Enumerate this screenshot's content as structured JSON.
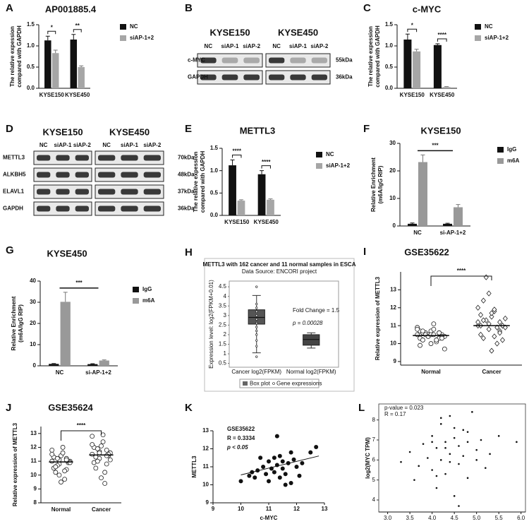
{
  "blots": [
    {
      "panel": "B",
      "groups": [
        {
          "name": "KYSE150",
          "lanes": [
            "NC",
            "siAP-1",
            "siAP-2"
          ]
        },
        {
          "name": "KYSE450",
          "lanes": [
            "NC",
            "siAP-1",
            "siAP-2"
          ]
        }
      ],
      "rows": [
        {
          "name": "c-MYC",
          "size": "55kDa"
        },
        {
          "name": "GAPDH",
          "size": "36kDa"
        }
      ]
    },
    {
      "panel": "D",
      "groups": [
        {
          "name": "KYSE150",
          "lanes": [
            "NC",
            "siAP-1",
            "siAP-2"
          ]
        },
        {
          "name": "KYSE450",
          "lanes": [
            "NC",
            "siAP-1",
            "siAP-2"
          ]
        }
      ],
      "rows": [
        {
          "name": "METTL3",
          "size": "70kDa"
        },
        {
          "name": "ALKBH5",
          "size": "48kDa"
        },
        {
          "name": "ELAVL1",
          "size": "37kDa"
        },
        {
          "name": "GAPDH",
          "size": "36kDa"
        }
      ]
    }
  ],
  "chart_data": [
    {
      "type": "bar",
      "panel": "A",
      "title": "AP001885.4",
      "ylabel": [
        "The relative expession",
        "compared with GAPDH"
      ],
      "categories": [
        "KYSE150",
        "KYSE450"
      ],
      "series": [
        {
          "name": "NC",
          "color": "#111111",
          "values": [
            1.13,
            1.15
          ],
          "errors": [
            0.1,
            0.12
          ]
        },
        {
          "name": "siAP-1+2",
          "color": "#a6a6a6",
          "values": [
            0.83,
            0.5
          ],
          "errors": [
            0.07,
            0.03
          ]
        }
      ],
      "ylim": [
        0,
        1.5
      ],
      "yticks": [
        {
          "value": 0,
          "label": "0.0"
        },
        0.5,
        {
          "value": 1,
          "label": "1.0"
        },
        1.5
      ],
      "annotations": [
        "*",
        "**"
      ]
    },
    {
      "type": "bar",
      "panel": "C",
      "title": "c-MYC",
      "ylabel": [
        "The relative expession",
        "compared with GAPDH"
      ],
      "categories": [
        "KYSE150",
        "KYSE450"
      ],
      "series": [
        {
          "name": "NC",
          "color": "#111111",
          "values": [
            1.15,
            1.02
          ],
          "errors": [
            0.13,
            0.03
          ]
        },
        {
          "name": "siAP-1+2",
          "color": "#a6a6a6",
          "values": [
            0.87,
            0.03
          ],
          "errors": [
            0.05,
            0.01
          ]
        }
      ],
      "ylim": [
        0,
        1.5
      ],
      "yticks": [
        {
          "value": 0,
          "label": "0.0"
        },
        0.5,
        {
          "value": 1,
          "label": "1.0"
        },
        1.5
      ],
      "annotations": [
        "*",
        "****"
      ]
    },
    {
      "type": "bar",
      "panel": "E",
      "title": "METTL3",
      "ylabel": [
        "The relative expession",
        "compared with GAPDH"
      ],
      "categories": [
        "KYSE150",
        "KYSE450"
      ],
      "series": [
        {
          "name": "NC",
          "color": "#111111",
          "values": [
            1.12,
            0.92
          ],
          "errors": [
            0.12,
            0.08
          ]
        },
        {
          "name": "siAP-1+2",
          "color": "#a6a6a6",
          "values": [
            0.33,
            0.35
          ],
          "errors": [
            0.02,
            0.02
          ]
        }
      ],
      "ylim": [
        0,
        1.5
      ],
      "yticks": [
        {
          "value": 0,
          "label": "0.0"
        },
        0.5,
        {
          "value": 1,
          "label": "1.0"
        },
        1.5
      ],
      "annotations": [
        "****",
        "****"
      ]
    },
    {
      "type": "bar",
      "panel": "F",
      "title": "KYSE150",
      "ylabel": [
        "Relative Enrichment",
        "(m6A/IgG RIP)"
      ],
      "categories": [
        "NC",
        "si-AP-1+2"
      ],
      "series": [
        {
          "name": "IgG",
          "color": "#111111",
          "values": [
            0.8,
            0.8
          ],
          "errors": [
            0.3,
            0.2
          ]
        },
        {
          "name": "m6A",
          "color": "#999999",
          "values": [
            23.2,
            6.8
          ],
          "errors": [
            2.6,
            1.0
          ]
        }
      ],
      "ylim": [
        0,
        30
      ],
      "yticks": [
        0,
        10,
        20,
        30
      ],
      "annotations": [
        "***"
      ]
    },
    {
      "type": "bar",
      "panel": "G",
      "title": "KYSE450",
      "ylabel": [
        "Relative Enrichment",
        "(m6A/IgG RIP)"
      ],
      "categories": [
        "NC",
        "si-AP-1+2"
      ],
      "series": [
        {
          "name": "IgG",
          "color": "#111111",
          "values": [
            0.9,
            0.8
          ],
          "errors": [
            0.2,
            0.2
          ]
        },
        {
          "name": "m6A",
          "color": "#999999",
          "values": [
            30.2,
            2.5
          ],
          "errors": [
            4.5,
            0.3
          ]
        }
      ],
      "ylim": [
        0,
        40
      ],
      "yticks": [
        0,
        10,
        20,
        30,
        40
      ],
      "annotations": [
        "***"
      ]
    },
    {
      "type": "box",
      "panel": "H",
      "title": "METTL3 with 162 cancer and 11 normal samples in ESCA",
      "subtitle": "Data Source: ENCORI project",
      "ylabel": "Expression level: log2(FPKM+0.01)",
      "categories": [
        "Cancer log2(FPKM)",
        "Normal log2(FPKM)"
      ],
      "boxes": [
        {
          "min": 1.05,
          "q1": 2.55,
          "median": 2.9,
          "q3": 3.3,
          "max": 4.05
        },
        {
          "min": 1.3,
          "q1": 1.45,
          "median": 1.75,
          "q3": 2.0,
          "max": 2.1
        }
      ],
      "points": [
        [
          0.85,
          1.4,
          1.7,
          2.0,
          2.2,
          2.4,
          2.6,
          2.8,
          3.0,
          3.2,
          3.4,
          3.6,
          4.5
        ],
        []
      ],
      "colors": [
        "#555555",
        "#444444"
      ],
      "annotations": [
        "Fold Change = 1.5",
        "p = 0.00028"
      ],
      "legend": [
        "Box plot",
        "Gene expressions"
      ],
      "ylim": [
        0.3,
        4.8
      ],
      "yticks": [
        0.5,
        1,
        1.5,
        2,
        2.5,
        3,
        3.5,
        4,
        4.5
      ]
    },
    {
      "type": "strip",
      "panel": "I",
      "title": "GSE35622",
      "ylabel": "Relative expression of METTL3",
      "categories": [
        "Normal",
        "Cancer"
      ],
      "markers": [
        "circle",
        "diamond"
      ],
      "values": [
        [
          10.5,
          10.4,
          10.6,
          10.3,
          10.7,
          10.5,
          10.2,
          10.8,
          10.4,
          10.6,
          10.1,
          10.9,
          10.5,
          10.3,
          10.7,
          10.0,
          10.4,
          10.6,
          11.1,
          9.7,
          10.5,
          10.2,
          10.8,
          10.4,
          10.6,
          9.9,
          10.5,
          10.3,
          10.7,
          10.5
        ],
        [
          11.0,
          10.8,
          11.2,
          10.5,
          11.5,
          11.0,
          10.3,
          11.8,
          10.9,
          11.3,
          10.0,
          12.0,
          11.1,
          10.7,
          11.6,
          9.6,
          11.0,
          12.4,
          10.4,
          11.4,
          13.7,
          10.9,
          11.2,
          12.8,
          10.6,
          11.0,
          11.7,
          10.2,
          11.3,
          11.9
        ]
      ],
      "means": [
        10.45,
        11.0
      ],
      "ylim": [
        8.8,
        14
      ],
      "yticks": [
        9,
        10,
        11,
        12,
        13
      ],
      "annotations": [
        "****"
      ]
    },
    {
      "type": "strip",
      "panel": "J",
      "title": "GSE35624",
      "ylabel": "Relative expression of METTL3",
      "categories": [
        "Normal",
        "Cancer"
      ],
      "markers": [
        "circle",
        "circle"
      ],
      "values": [
        [
          11.0,
          10.8,
          11.2,
          10.5,
          11.4,
          10.9,
          10.2,
          11.6,
          11.0,
          10.7,
          9.7,
          11.8,
          11.1,
          10.4,
          11.3,
          9.5,
          11.0,
          10.6,
          12.0,
          10.9,
          11.2,
          10.3,
          11.5,
          10.0,
          11.1
        ],
        [
          11.5,
          11.2,
          11.8,
          10.9,
          12.1,
          11.4,
          10.5,
          12.4,
          11.6,
          11.0,
          9.4,
          12.8,
          11.7,
          10.8,
          12.0,
          9.8,
          11.5,
          11.3,
          12.9,
          11.1,
          11.9,
          10.2,
          12.2,
          11.6,
          11.4
        ]
      ],
      "means": [
        10.95,
        11.45
      ],
      "ylim": [
        8,
        13.5
      ],
      "yticks": [
        8,
        9,
        10,
        11,
        12,
        13
      ],
      "annotations": [
        "****"
      ]
    },
    {
      "type": "scatter",
      "panel": "K",
      "xlabel": "c-MYC",
      "ylabel": "METTL3",
      "color": "#111111",
      "x": [
        10.0,
        10.3,
        10.5,
        10.6,
        10.8,
        10.9,
        11.0,
        11.0,
        11.1,
        11.2,
        11.2,
        11.3,
        11.4,
        11.4,
        11.5,
        11.5,
        11.6,
        11.7,
        11.8,
        11.9,
        12.0,
        12.1,
        12.2,
        12.5,
        12.7,
        10.4,
        10.7,
        11.3,
        11.8,
        11.6
      ],
      "y": [
        10.2,
        10.5,
        10.4,
        10.8,
        11.0,
        10.6,
        11.3,
        10.2,
        10.9,
        11.5,
        10.7,
        11.1,
        10.4,
        11.6,
        10.9,
        11.3,
        10.6,
        11.2,
        10.1,
        11.4,
        11.0,
        10.5,
        11.2,
        11.8,
        12.1,
        10.7,
        11.5,
        12.7,
        11.8,
        10.0
      ],
      "trendline": {
        "x": [
          10.0,
          12.8
        ],
        "y": [
          10.55,
          11.6
        ]
      },
      "xlim": [
        9,
        13
      ],
      "xticks": [
        9,
        10,
        11,
        12,
        13
      ],
      "ylim": [
        9,
        13
      ],
      "yticks": [
        9,
        10,
        11,
        12,
        13
      ],
      "annotations": [
        "GSE35622",
        "R = 0.3334",
        "p < 0.05"
      ]
    },
    {
      "type": "scatter",
      "panel": "L",
      "ylabel": "log2(MYC TPM)",
      "color": "#111111",
      "frame": true,
      "x": [
        3.3,
        3.5,
        3.6,
        3.8,
        3.9,
        4.0,
        4.0,
        4.1,
        4.1,
        4.2,
        4.2,
        4.3,
        4.3,
        4.4,
        4.4,
        4.5,
        4.5,
        4.6,
        4.6,
        4.7,
        4.7,
        4.8,
        4.8,
        4.9,
        5.0,
        5.1,
        5.2,
        5.3,
        5.5,
        5.9,
        3.7,
        4.0,
        4.2,
        4.4,
        4.6,
        4.8,
        5.0,
        4.3,
        4.5,
        4.1
      ],
      "y": [
        5.9,
        6.4,
        5.0,
        6.8,
        6.1,
        7.2,
        5.5,
        6.6,
        4.6,
        7.8,
        6.0,
        6.9,
        5.3,
        8.2,
        6.3,
        7.1,
        4.2,
        6.7,
        5.8,
        7.5,
        6.2,
        6.9,
        5.1,
        8.4,
        6.5,
        7.0,
        5.6,
        6.3,
        7.2,
        6.9,
        5.7,
        6.9,
        8.1,
        5.9,
        3.7,
        7.4,
        6.0,
        6.6,
        7.6,
        5.2
      ],
      "xlim": [
        2.8,
        6.1
      ],
      "xticks": [
        {
          "value": 3,
          "label": "3.0"
        },
        3.5,
        {
          "value": 4,
          "label": "4.0"
        },
        4.5,
        {
          "value": 5,
          "label": "5.0"
        },
        5.5,
        {
          "value": 6,
          "label": "6.0"
        }
      ],
      "ylim": [
        3.4,
        8.8
      ],
      "yticks": [
        4,
        5,
        6,
        7,
        8
      ],
      "annotations": [
        "p-value = 0.023",
        "R = 0.17"
      ]
    }
  ]
}
